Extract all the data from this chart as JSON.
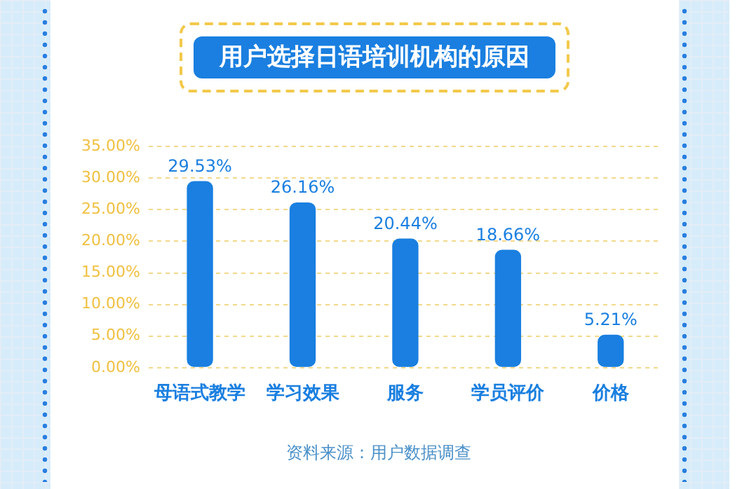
{
  "chart_data": {
    "type": "bar",
    "title": "用户选择日语培训机构的原因",
    "categories": [
      "母语式教学",
      "学习效果",
      "服务",
      "学员评价",
      "价格"
    ],
    "values": [
      29.53,
      26.16,
      20.44,
      18.66,
      5.21
    ],
    "value_labels": [
      "29.53%",
      "26.16%",
      "20.44%",
      "18.66%",
      "5.21%"
    ],
    "color": "#1a7fe0",
    "ylim": [
      0,
      35
    ],
    "yticks": [
      {
        "value": 0,
        "label": "0.00%"
      },
      {
        "value": 5,
        "label": "5.00%"
      },
      {
        "value": 10,
        "label": "10.00%"
      },
      {
        "value": 15,
        "label": "15.00%"
      },
      {
        "value": 20,
        "label": "20.00%"
      },
      {
        "value": 25,
        "label": "25.00%"
      },
      {
        "value": 30,
        "label": "30.00%"
      },
      {
        "value": 35,
        "label": "35.00%"
      }
    ],
    "grid": "y",
    "legend": false,
    "annotations": [
      "资料来源：用户数据调查"
    ]
  }
}
